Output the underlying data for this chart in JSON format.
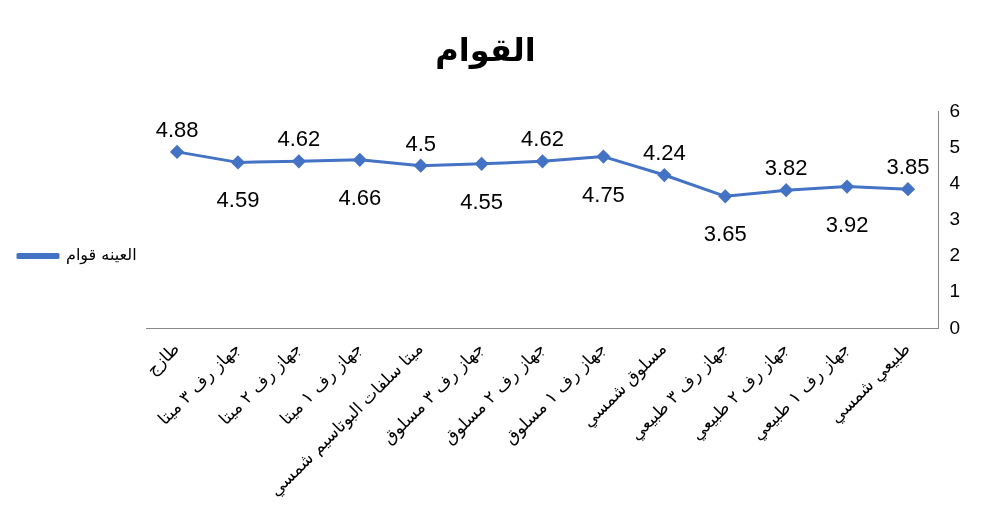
{
  "chart_data": {
    "type": "line",
    "title": "القوام",
    "categories": [
      "طازج",
      "جهاز رف ٣ ميتا",
      "جهاز رف ٢ ميتا",
      "جهاز رف ١ ميتا",
      "ميتا سلفات البوتاسيم شمسي",
      "جهاز رف ٣ مسلوق",
      "جهاز رف ٢ مسلوق",
      "جهاز رف ١ مسلوق",
      "مسلوق شمسي",
      "جهاز رف ٣ طبيعي",
      "جهاز رف ٢ طبيعي",
      "جهاز رف ١ طبيعي",
      "طبيعي شمسي"
    ],
    "series": [
      {
        "name": "العينه قوام",
        "color": "#4472c4",
        "values": [
          4.88,
          4.59,
          4.62,
          4.66,
          4.5,
          4.55,
          4.62,
          4.75,
          4.24,
          3.65,
          3.82,
          3.92,
          3.85
        ]
      }
    ],
    "ylim": [
      0,
      6
    ],
    "yticks": [
      0,
      1,
      2,
      3,
      4,
      5,
      6
    ],
    "grid": false,
    "legend": "left",
    "marker": "diamond",
    "data_labels": true
  }
}
